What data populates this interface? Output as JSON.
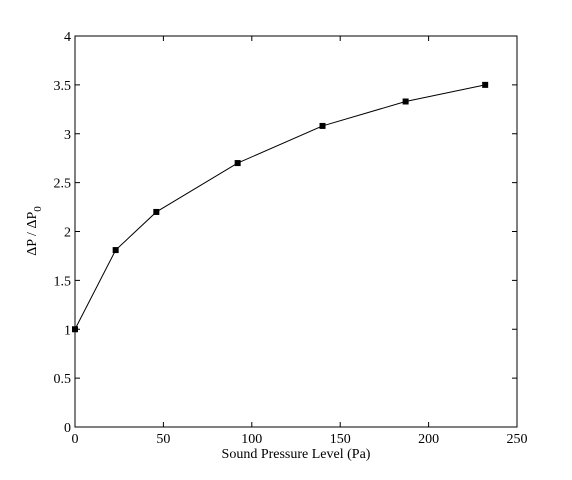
{
  "chart_data": {
    "type": "line",
    "xlabel": "Sound Pressure Level (Pa)",
    "ylabel": [
      "ΔP / ΔP",
      "0"
    ],
    "x": [
      0,
      23,
      46,
      92,
      140,
      187,
      232
    ],
    "series": [
      {
        "color": "#000000",
        "values": [
          1,
          1.81,
          2.2,
          2.7,
          3.08,
          3.33,
          3.5
        ]
      }
    ],
    "xlim": [
      0,
      250
    ],
    "xticks": [
      0,
      50,
      100,
      150,
      200,
      250
    ],
    "ylim": [
      0,
      4
    ],
    "yticks": [
      0,
      0.5,
      1,
      1.5,
      2,
      2.5,
      3,
      3.5,
      4
    ],
    "grid": false
  }
}
